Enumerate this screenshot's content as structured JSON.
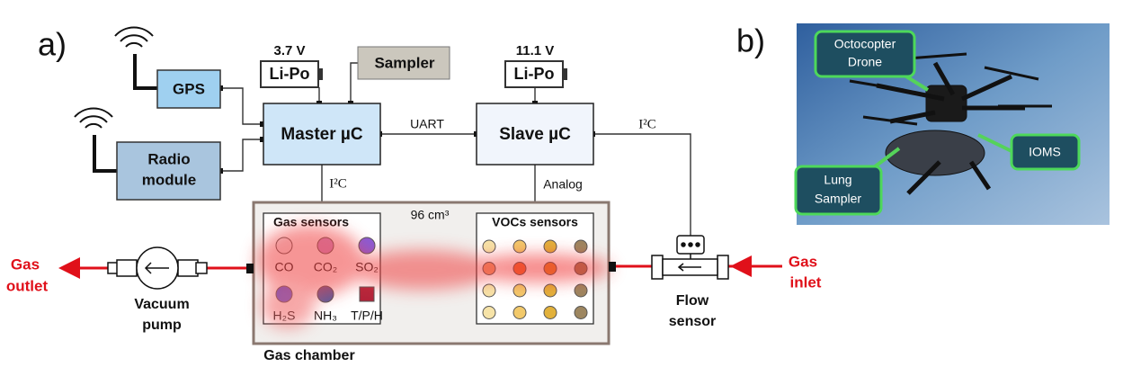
{
  "panel_a": {
    "label": "a)",
    "battery_left": {
      "voltage": "3.7 V",
      "label": "Li-Po"
    },
    "battery_right": {
      "voltage": "11.1 V",
      "label": "Li-Po"
    },
    "sampler": "Sampler",
    "gps": "GPS",
    "radio": [
      "Radio",
      "module"
    ],
    "master": "Master µC",
    "slave": "Slave µC",
    "uart": "UART",
    "i2c_master": "I²C",
    "i2c_flow": "I²C",
    "analog": "Analog",
    "volume": "96 cm³",
    "gas_sensors": {
      "title": "Gas sensors",
      "items": [
        "CO",
        "CO₂",
        "SO₂",
        "H₂S",
        "NH₃",
        "T/P/H"
      ]
    },
    "vocs_title": "VOCs sensors",
    "gas_outlet": [
      "Gas",
      "outlet"
    ],
    "vacuum_pump": [
      "Vacuum",
      "pump"
    ],
    "gas_chamber": "Gas chamber",
    "flow_sensor": [
      "Flow",
      "sensor"
    ],
    "gas_inlet": [
      "Gas",
      "inlet"
    ]
  },
  "panel_b": {
    "label": "b)",
    "drone": [
      "Octocopter",
      "Drone"
    ],
    "ioms": "IOMS",
    "lung": [
      "Lung",
      "Sampler"
    ]
  }
}
